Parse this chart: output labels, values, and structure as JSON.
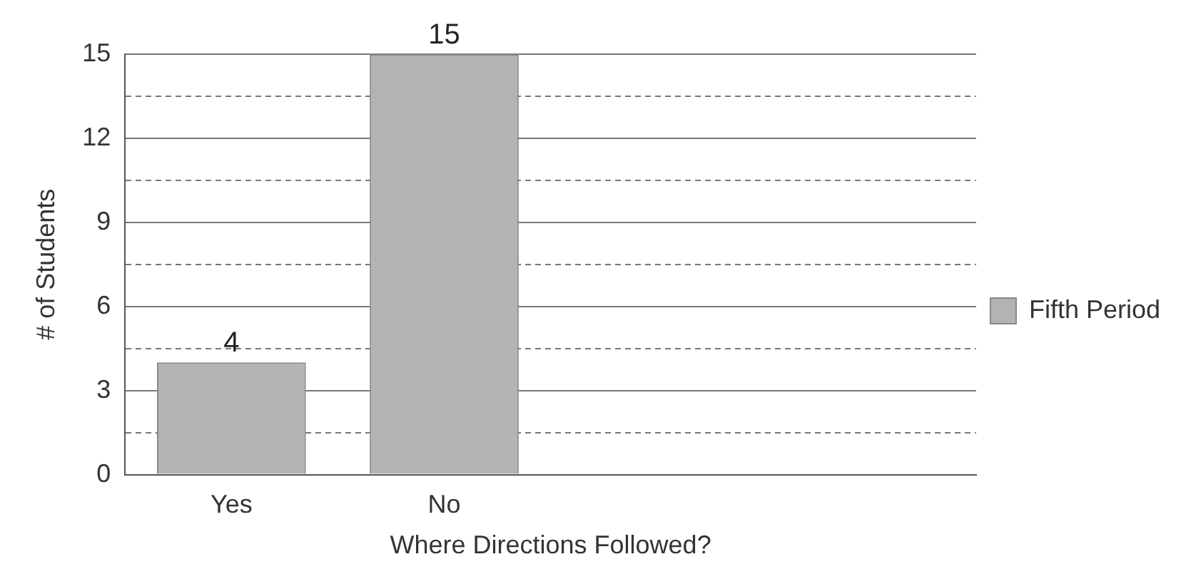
{
  "chart_data": {
    "type": "bar",
    "xlabel": "Where Directions Followed?",
    "ylabel": "# of Students",
    "categories": [
      "Yes",
      "No",
      null,
      null
    ],
    "series": [
      {
        "name": "Fifth Period",
        "color": "#b3b3b3",
        "values": [
          4,
          15,
          null,
          null
        ]
      }
    ],
    "ylim": [
      0,
      15
    ],
    "yticks": [
      0,
      {
        "value": 1.5,
        "label": null
      },
      3,
      {
        "value": 4.5,
        "label": null
      },
      6,
      {
        "value": 7.5,
        "label": null
      },
      9,
      {
        "value": 10.5,
        "label": null
      },
      12,
      {
        "value": 13.5,
        "label": null
      },
      15
    ],
    "grid": "y",
    "legend": "right",
    "data_labels": true
  }
}
